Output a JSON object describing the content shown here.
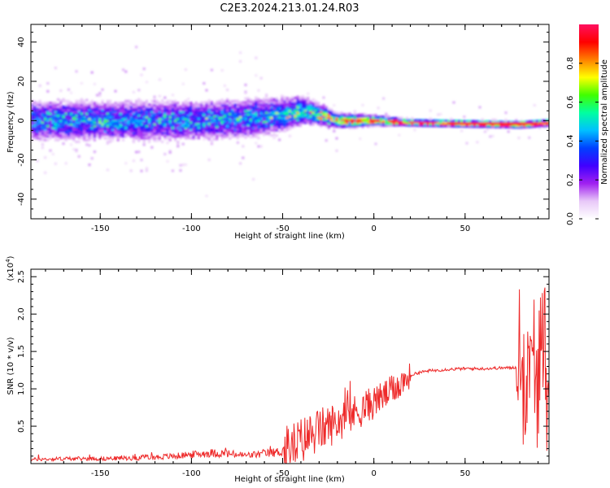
{
  "title": "C2E3.2024.213.01.24.R03",
  "chart_data": [
    {
      "type": "heatmap",
      "xlabel": "Height of straight line (km)",
      "ylabel": "Frequency (Hz)",
      "xlim": [
        -188,
        96
      ],
      "ylim": [
        -50,
        49
      ],
      "xticks": [
        -150,
        -100,
        -50,
        0,
        50
      ],
      "yticks": [
        -40,
        -20,
        0,
        20,
        40
      ],
      "xtick_labels": [
        "-150",
        "-100",
        "-50",
        "0",
        "50"
      ],
      "ytick_labels": [
        "-40",
        "-20",
        "0",
        "20",
        "40"
      ],
      "colorbar": {
        "label": "Normalized spectral amplitude",
        "range": [
          0,
          1
        ],
        "ticks": [
          0.0,
          0.2,
          0.4,
          0.6,
          0.8
        ],
        "tick_labels": [
          "0.0",
          "0.2",
          "0.4",
          "0.6",
          "0.8"
        ],
        "colormap": [
          "#ffffff",
          "#e8c8f8",
          "#a020f0",
          "#4000ff",
          "#0040ff",
          "#00c0ff",
          "#00ffa0",
          "#40ff00",
          "#ffff00",
          "#ff8000",
          "#ff0000",
          "#ff1060"
        ]
      },
      "ridge": {
        "description_points_x": [
          -188,
          -150,
          -100,
          -75,
          -50,
          -40,
          -30,
          -20,
          0,
          20,
          50,
          80,
          96
        ],
        "description_points_y": [
          0,
          0,
          0,
          1,
          3,
          5,
          3,
          0,
          0,
          -1,
          -1.5,
          -2,
          -1
        ]
      }
    },
    {
      "type": "line",
      "xlabel": "Height of straight line (km)",
      "ylabel": "SNR (10 * v/v)",
      "y_multiplier": "(x10",
      "y_multiplier_exp": "4",
      "y_multiplier_close": ")",
      "xlim": [
        -188,
        96
      ],
      "ylim": [
        0,
        2.6
      ],
      "xticks": [
        -150,
        -100,
        -50,
        0,
        50
      ],
      "yticks": [
        0.5,
        1.0,
        1.5,
        2.0,
        2.5
      ],
      "xtick_labels": [
        "-150",
        "-100",
        "-50",
        "0",
        "50"
      ],
      "ytick_labels": [
        "0.5",
        "1.0",
        "1.5",
        "2.0",
        "2.5"
      ],
      "color": "#ee2a2a",
      "series": [
        {
          "x": [
            -188,
            -170,
            -150,
            -130,
            -110,
            -100,
            -90,
            -80,
            -70,
            -60,
            -50,
            -45,
            -40,
            -35,
            -30,
            -25,
            -20,
            -15,
            -10,
            -5,
            0,
            5,
            10,
            15,
            20,
            25,
            30,
            40,
            50,
            60,
            70,
            75,
            80,
            85,
            90,
            96
          ],
          "y": [
            0.05,
            0.06,
            0.06,
            0.07,
            0.09,
            0.11,
            0.13,
            0.12,
            0.1,
            0.12,
            0.15,
            0.22,
            0.3,
            0.38,
            0.45,
            0.5,
            0.56,
            0.62,
            0.68,
            0.75,
            0.82,
            0.9,
            0.98,
            1.08,
            1.18,
            1.22,
            1.24,
            1.26,
            1.27,
            1.27,
            1.28,
            1.28,
            1.3,
            1.35,
            1.3,
            1.25
          ]
        }
      ]
    }
  ]
}
